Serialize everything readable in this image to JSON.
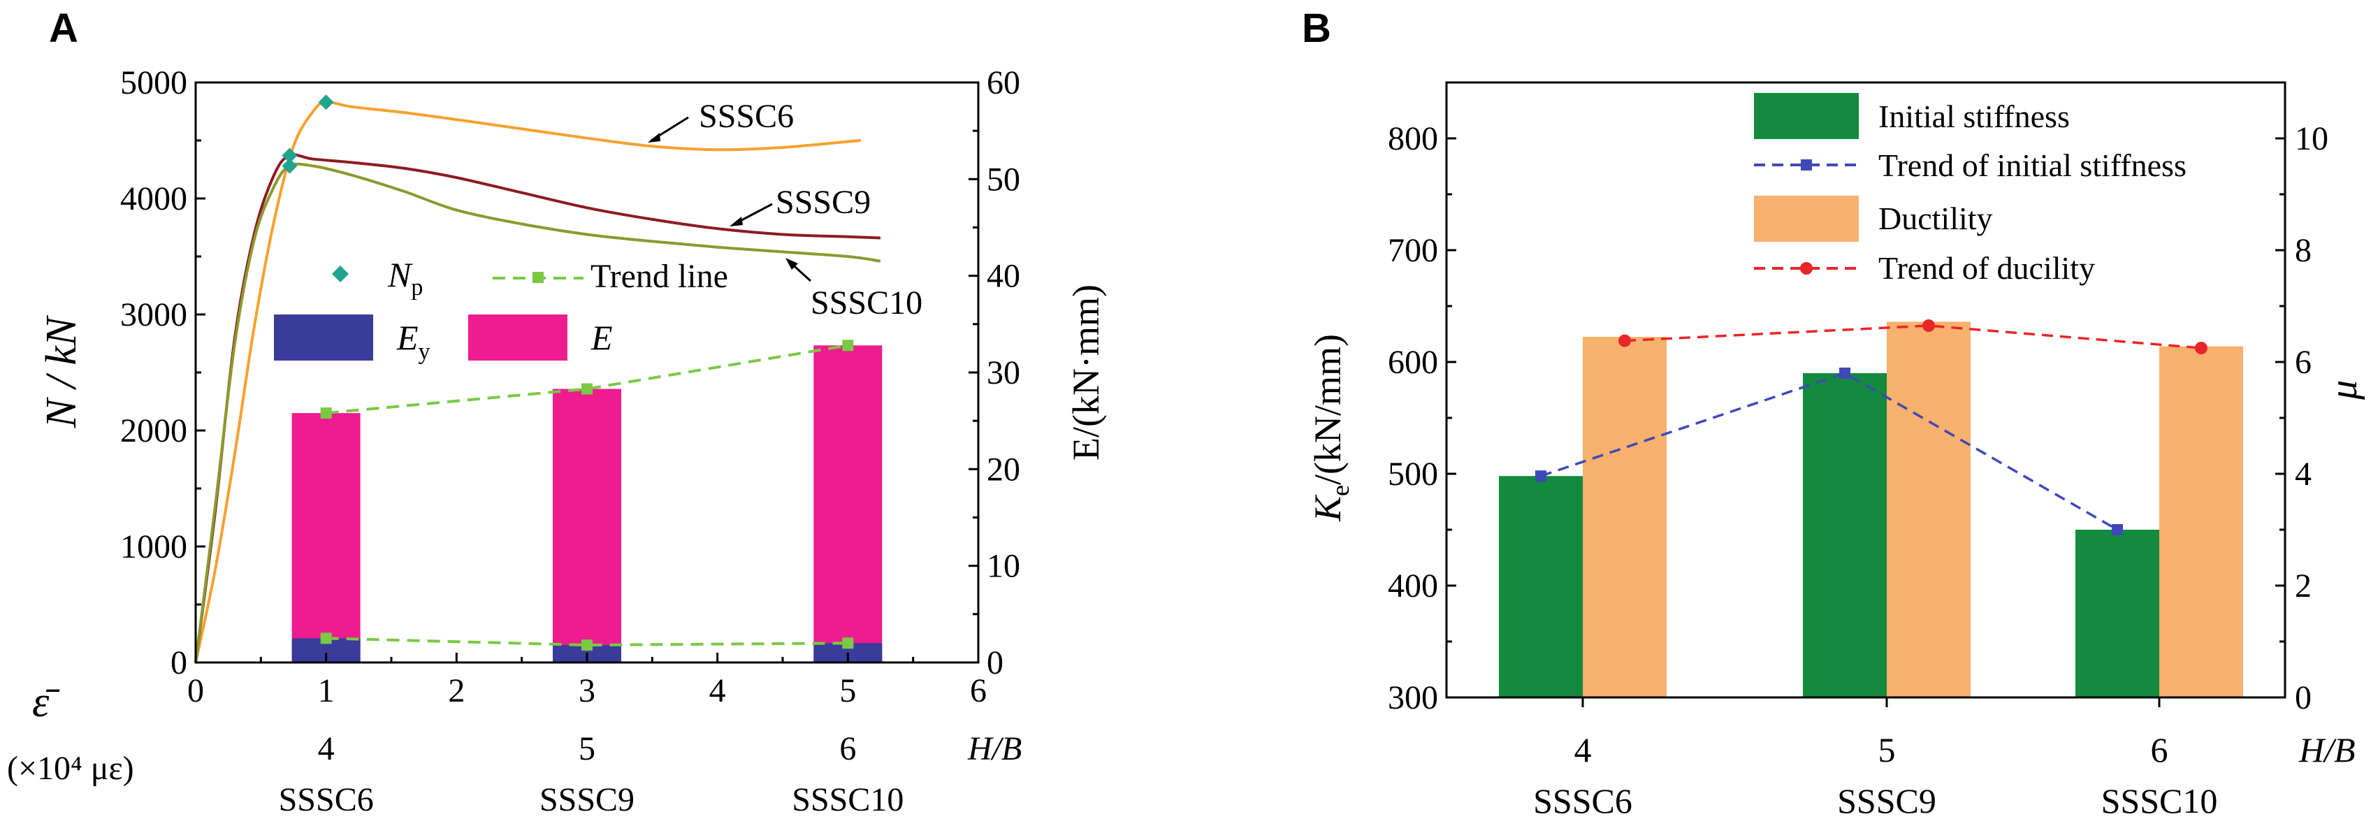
{
  "chart_data": [
    {
      "panel_label": "A",
      "type": "line+stacked-bar",
      "x_axis": {
        "ticks": [
          "0",
          "1",
          "2",
          "3",
          "4",
          "5",
          "6"
        ],
        "range": [
          0,
          6
        ],
        "label_symbol": "ε̄",
        "label_units": "(×10⁴ με)",
        "secondary_ticks": [
          "4",
          "5",
          "6"
        ],
        "secondary_tick_positions": [
          1,
          3,
          5
        ],
        "secondary_label": "H/B",
        "specimens": [
          "SSSC6",
          "SSSC9",
          "SSSC10"
        ]
      },
      "y_left": {
        "label": "N / kN",
        "range": [
          0,
          5000
        ],
        "ticks": [
          "0",
          "1000",
          "2000",
          "3000",
          "4000",
          "5000"
        ]
      },
      "y_right": {
        "label": "E/(kN·mm)",
        "range": [
          0,
          60
        ],
        "ticks": [
          "0",
          "10",
          "20",
          "30",
          "40",
          "50",
          "60"
        ]
      },
      "curves": [
        {
          "name": "SSSC6",
          "color": "#F7A12F",
          "points": [
            [
              0,
              0
            ],
            [
              0.15,
              800
            ],
            [
              0.3,
              1800
            ],
            [
              0.45,
              2900
            ],
            [
              0.6,
              3800
            ],
            [
              0.75,
              4450
            ],
            [
              0.9,
              4750
            ],
            [
              1.0,
              4830
            ],
            [
              1.2,
              4790
            ],
            [
              1.6,
              4740
            ],
            [
              2.0,
              4680
            ],
            [
              2.5,
              4600
            ],
            [
              3.0,
              4520
            ],
            [
              3.5,
              4450
            ],
            [
              4.0,
              4420
            ],
            [
              4.5,
              4440
            ],
            [
              5.0,
              4490
            ],
            [
              5.1,
              4500
            ]
          ]
        },
        {
          "name": "SSSC9",
          "color": "#8E1B22",
          "points": [
            [
              0,
              0
            ],
            [
              0.15,
              1300
            ],
            [
              0.3,
              2800
            ],
            [
              0.45,
              3700
            ],
            [
              0.6,
              4200
            ],
            [
              0.72,
              4370
            ],
            [
              0.9,
              4340
            ],
            [
              1.2,
              4310
            ],
            [
              1.6,
              4260
            ],
            [
              2.0,
              4180
            ],
            [
              2.5,
              4050
            ],
            [
              3.0,
              3920
            ],
            [
              3.5,
              3820
            ],
            [
              4.0,
              3740
            ],
            [
              4.5,
              3690
            ],
            [
              5.0,
              3670
            ],
            [
              5.25,
              3660
            ]
          ]
        },
        {
          "name": "SSSC10",
          "color": "#8B9A2E",
          "points": [
            [
              0,
              0
            ],
            [
              0.15,
              1350
            ],
            [
              0.3,
              2750
            ],
            [
              0.45,
              3650
            ],
            [
              0.6,
              4100
            ],
            [
              0.72,
              4280
            ],
            [
              0.9,
              4280
            ],
            [
              1.2,
              4200
            ],
            [
              1.6,
              4060
            ],
            [
              2.0,
              3900
            ],
            [
              2.5,
              3780
            ],
            [
              3.0,
              3690
            ],
            [
              3.5,
              3630
            ],
            [
              4.0,
              3580
            ],
            [
              4.5,
              3540
            ],
            [
              5.0,
              3500
            ],
            [
              5.25,
              3460
            ]
          ]
        }
      ],
      "curve_labels": [
        "SSSC6",
        "SSSC9",
        "SSSC10"
      ],
      "peak_points": {
        "name": "Np",
        "color": "#22A38E",
        "points": [
          [
            1.0,
            4830
          ],
          [
            0.72,
            4370
          ],
          [
            0.72,
            4280
          ]
        ]
      },
      "bars": {
        "positions": [
          1,
          3,
          5
        ],
        "Ey": [
          2.5,
          1.8,
          2.0
        ],
        "E": [
          25.8,
          28.3,
          32.8
        ],
        "Ey_color": "#3A3B9A",
        "E_color": "#EE1C8E"
      },
      "trend_line": {
        "name": "Trend line",
        "color": "#7AC943",
        "E": [
          25.8,
          28.3,
          32.8
        ],
        "Ey": [
          2.5,
          1.8,
          2.0
        ]
      },
      "legend": {
        "np_base": "N",
        "np_sub": "p",
        "trend": "Trend line",
        "ey_base": "E",
        "ey_sub": "y",
        "e": "E"
      }
    },
    {
      "panel_label": "B",
      "type": "bar+line",
      "categories": [
        "4",
        "5",
        "6"
      ],
      "specimens": [
        "SSSC6",
        "SSSC9",
        "SSSC10"
      ],
      "x_label": "H/B",
      "y_left": {
        "label": "K",
        "label_sub": "e",
        "label_units": "/(kN/mm)",
        "range": [
          300,
          850
        ],
        "ticks": [
          "300",
          "400",
          "500",
          "600",
          "700",
          "800"
        ]
      },
      "y_right": {
        "label": "μ",
        "range": [
          0,
          11
        ],
        "ticks": [
          "0",
          "2",
          "4",
          "6",
          "8",
          "10"
        ]
      },
      "series": [
        {
          "name": "Initial stiffness",
          "type": "bar",
          "axis": "left",
          "color": "#138A3E",
          "values": [
            498,
            590,
            450
          ]
        },
        {
          "name": "Trend of initial stiffness",
          "type": "line",
          "axis": "left",
          "color": "#3F48B8",
          "values": [
            498,
            590,
            450
          ]
        },
        {
          "name": "Ductility",
          "type": "bar",
          "axis": "right",
          "color": "#F9B16E",
          "values": [
            6.45,
            6.72,
            6.28
          ]
        },
        {
          "name": "Trend of ducility",
          "type": "line",
          "axis": "right",
          "color": "#E8262A",
          "values": [
            6.38,
            6.65,
            6.25
          ]
        }
      ]
    }
  ]
}
